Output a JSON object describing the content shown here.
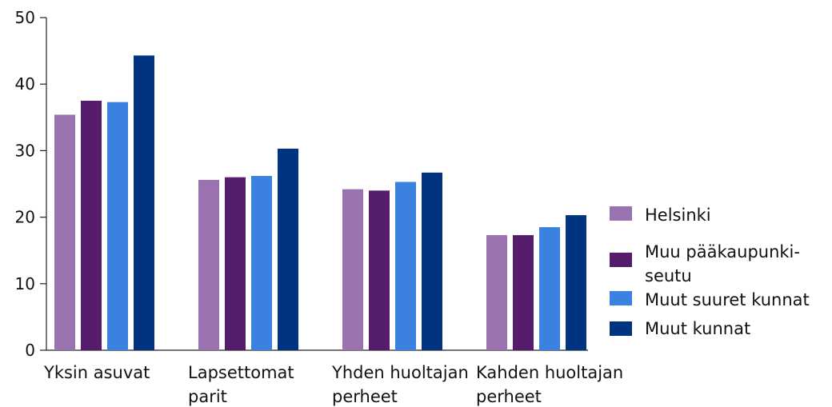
{
  "chart_data": {
    "type": "bar",
    "title": "",
    "xlabel": "",
    "ylabel": "",
    "ylim": [
      0,
      50
    ],
    "yticks": [
      0,
      10,
      20,
      30,
      40,
      50
    ],
    "grid": false,
    "legend_position": "right",
    "categories": [
      [
        "Yksin asuvat"
      ],
      [
        "Lapsettomat",
        "parit"
      ],
      [
        "Yhden huoltajan",
        "perheet"
      ],
      [
        "Kahden huoltajan",
        "perheet"
      ]
    ],
    "series": [
      {
        "name": "Helsinki",
        "legend_lines": [
          "Helsinki"
        ],
        "color": "#9b72b0",
        "values": [
          35.4,
          25.6,
          24.2,
          17.3
        ]
      },
      {
        "name": "Muu pääkaupunki-seutu",
        "legend_lines": [
          "Muu pääkaupunki-",
          "seutu"
        ],
        "color": "#561c6c",
        "values": [
          37.5,
          26.0,
          24.0,
          17.3
        ]
      },
      {
        "name": "Muut suuret kunnat",
        "legend_lines": [
          "Muut suuret kunnat"
        ],
        "color": "#3b82e0",
        "values": [
          37.3,
          26.2,
          25.3,
          18.5
        ]
      },
      {
        "name": "Muut kunnat",
        "legend_lines": [
          "Muut kunnat"
        ],
        "color": "#003480",
        "values": [
          44.3,
          30.3,
          26.7,
          20.3
        ]
      }
    ]
  }
}
